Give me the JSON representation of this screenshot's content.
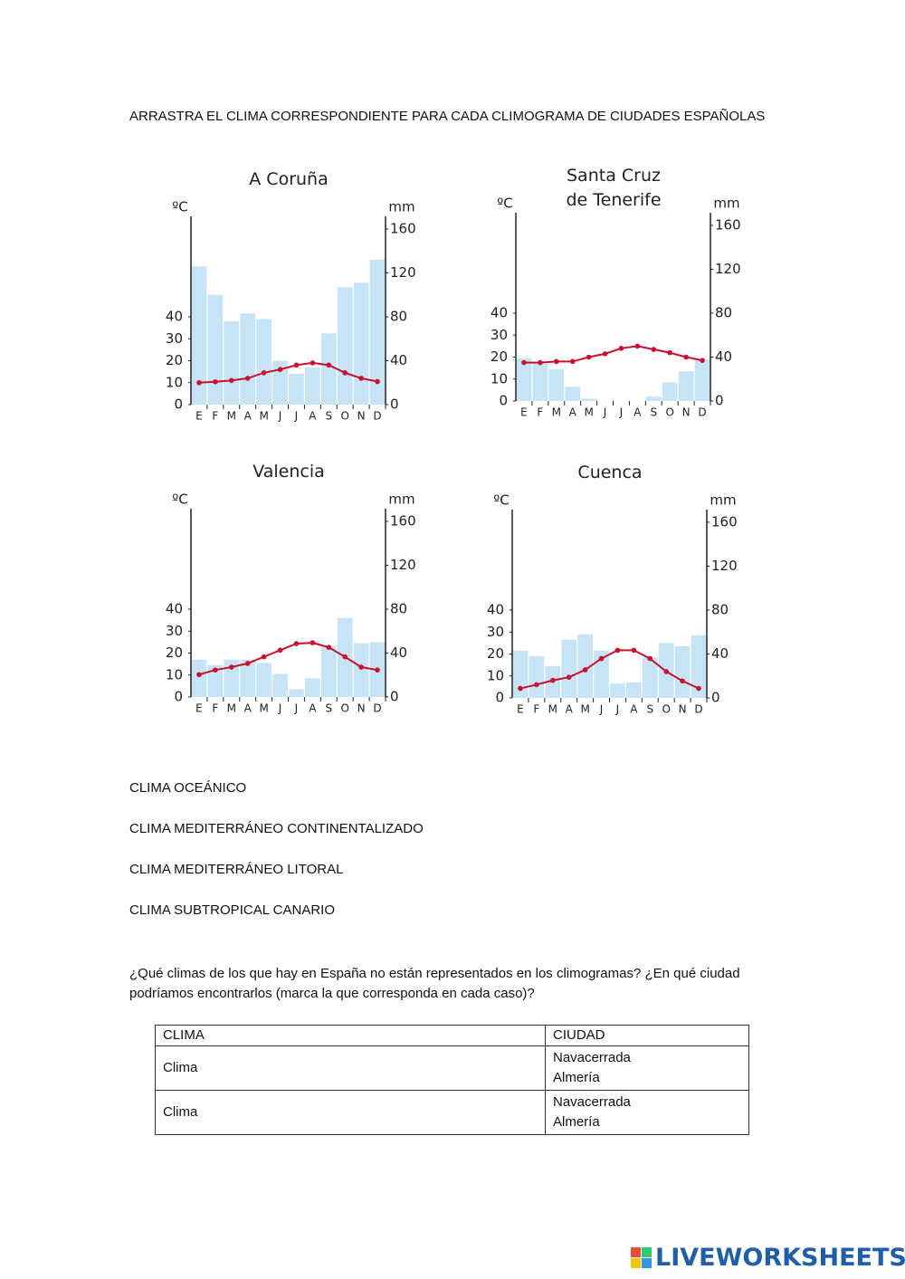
{
  "instruction": "ARRASTRA EL CLIMA CORRESPONDIENTE PARA CADA CLIMOGRAMA DE CIUDADES ESPAÑOLAS",
  "chart_data": [
    {
      "type": "climograph",
      "title": "A Coruña",
      "ylabel": "ºC",
      "y2label": "mm",
      "categories": [
        "E",
        "F",
        "M",
        "A",
        "M",
        "J",
        "J",
        "A",
        "S",
        "O",
        "N",
        "D"
      ],
      "ylim": [
        0,
        80
      ],
      "yticks": [
        0,
        10,
        20,
        30,
        40
      ],
      "y2lim": [
        0,
        160
      ],
      "y2ticks": [
        0,
        40,
        80,
        120,
        160
      ],
      "series": [
        {
          "type": "bar",
          "axis": "y2",
          "color": "#c6e4f6",
          "values": [
            126,
            100,
            76,
            83,
            78,
            40,
            28,
            34,
            65,
            107,
            111,
            132
          ]
        },
        {
          "type": "line",
          "color": "#c8102e",
          "values": [
            10,
            10.4,
            11,
            12,
            14.5,
            16,
            18,
            19,
            18,
            14.5,
            12,
            10.5
          ]
        }
      ]
    },
    {
      "type": "climograph",
      "title": "Santa Cruz de Tenerife",
      "ylabel": "ºC",
      "y2label": "mm",
      "categories": [
        "E",
        "F",
        "M",
        "A",
        "M",
        "J",
        "J",
        "A",
        "S",
        "O",
        "N",
        "D"
      ],
      "ylim": [
        0,
        80
      ],
      "yticks": [
        0,
        10,
        20,
        30,
        40
      ],
      "y2lim": [
        0,
        160
      ],
      "y2ticks": [
        0,
        40,
        80,
        120,
        160
      ],
      "series": [
        {
          "type": "bar",
          "axis": "y2",
          "color": "#c6e4f6",
          "values": [
            39,
            34,
            29,
            13,
            2,
            0,
            0,
            0,
            4,
            17,
            27,
            38
          ]
        },
        {
          "type": "line",
          "color": "#c8102e",
          "values": [
            17.5,
            17.5,
            18,
            18,
            20,
            21.5,
            24,
            25,
            23.5,
            22,
            20,
            18.5
          ]
        }
      ]
    },
    {
      "type": "climograph",
      "title": "Valencia",
      "ylabel": "ºC",
      "y2label": "mm",
      "categories": [
        "E",
        "F",
        "M",
        "A",
        "M",
        "J",
        "J",
        "A",
        "S",
        "O",
        "N",
        "D"
      ],
      "ylim": [
        0,
        80
      ],
      "yticks": [
        0,
        10,
        20,
        30,
        40
      ],
      "y2lim": [
        0,
        160
      ],
      "y2ticks": [
        0,
        40,
        80,
        120,
        160
      ],
      "series": [
        {
          "type": "bar",
          "axis": "y2",
          "color": "#c6e4f6",
          "values": [
            34,
            29,
            34,
            34,
            31,
            21,
            7,
            17,
            47,
            72,
            49,
            50
          ]
        },
        {
          "type": "line",
          "color": "#c8102e",
          "values": [
            10.2,
            12.3,
            13.6,
            15.3,
            18.3,
            21.3,
            24.3,
            24.7,
            22.6,
            18.3,
            13.6,
            12.3
          ]
        }
      ]
    },
    {
      "type": "climograph",
      "title": "Cuenca",
      "ylabel": "ºC",
      "y2label": "mm",
      "categories": [
        "E",
        "F",
        "M",
        "A",
        "M",
        "J",
        "J",
        "A",
        "S",
        "O",
        "N",
        "D"
      ],
      "ylim": [
        0,
        80
      ],
      "yticks": [
        0,
        10,
        20,
        30,
        40
      ],
      "y2lim": [
        0,
        160
      ],
      "y2ticks": [
        0,
        40,
        80,
        120,
        160
      ],
      "series": [
        {
          "type": "bar",
          "axis": "y2",
          "color": "#c6e4f6",
          "values": [
            43,
            38,
            29,
            53,
            58,
            43,
            13,
            14,
            37,
            50,
            47,
            57
          ]
        },
        {
          "type": "line",
          "color": "#c8102e",
          "values": [
            4.3,
            6,
            8,
            9.4,
            12.8,
            17.9,
            21.7,
            21.7,
            17.9,
            12,
            7.7,
            4.3
          ]
        }
      ]
    }
  ],
  "options": [
    "CLIMA OCEÁNICO",
    "CLIMA MEDITERRÁNEO CONTINENTALIZADO",
    "CLIMA MEDITERRÁNEO LITORAL",
    "CLIMA SUBTROPICAL CANARIO"
  ],
  "question": "¿Qué climas de los que hay en España no están representados en los climogramas? ¿En qué ciudad podríamos encontrarlos (marca la que corresponda en cada caso)?",
  "table": {
    "header": [
      "CLIMA",
      "CIUDAD"
    ],
    "rows": [
      [
        "Clima",
        [
          "Navacerrada",
          "Almería"
        ]
      ],
      [
        "Clima",
        [
          "Navacerrada",
          "Almería"
        ]
      ]
    ]
  },
  "footer": {
    "brand": "LIVEWORKSHEETS"
  }
}
